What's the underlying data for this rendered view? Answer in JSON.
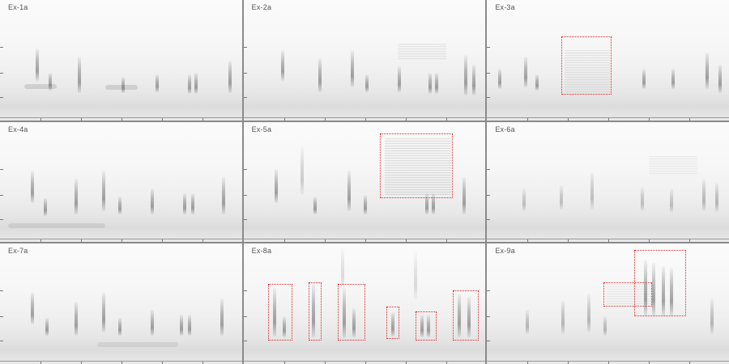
{
  "panels": [
    {
      "label": "Ex-1a"
    },
    {
      "label": "Ex-2a"
    },
    {
      "label": "Ex-3a"
    },
    {
      "label": "Ex-4a"
    },
    {
      "label": "Ex-5a"
    },
    {
      "label": "Ex-6a"
    },
    {
      "label": "Ex-7a"
    },
    {
      "label": "Ex-8a"
    },
    {
      "label": "Ex-9a"
    }
  ],
  "colors": {
    "highlight_box": "#dd2222",
    "divider": "#8a8a8a",
    "spectrogram_ink": "#505050"
  }
}
